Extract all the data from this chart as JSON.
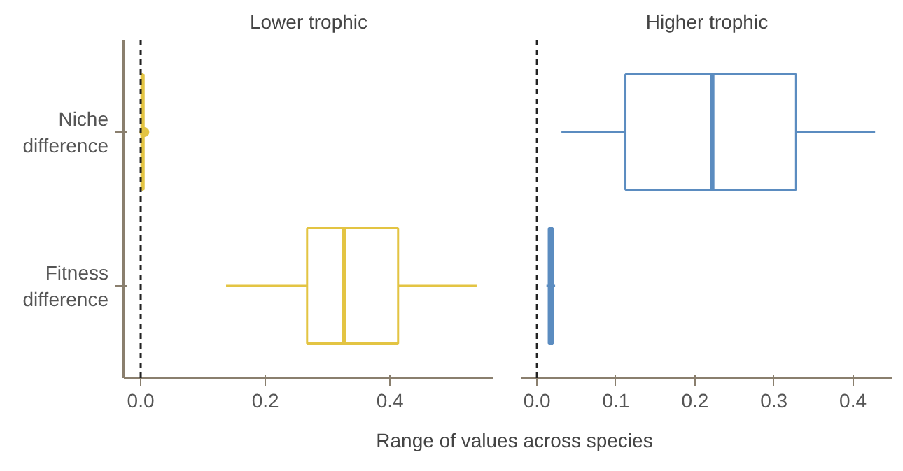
{
  "chart_data": [
    {
      "type": "box",
      "title": "Lower trophic",
      "orientation": "horizontal",
      "categories": [
        "Niche difference",
        "Fitness difference"
      ],
      "xlim": [
        -0.027,
        0.566
      ],
      "xticks": [
        {
          "value": 0,
          "label": "0.0"
        },
        0.2,
        0.4
      ],
      "xlabel": "Range of values across species",
      "series": [
        {
          "color": "#e3c443",
          "boxes": [
            {
              "low": 0.001,
              "q1": 0.002,
              "median": 0.003,
              "q3": 0.004,
              "high": 0.005,
              "outliers": [
                0.006
              ]
            },
            {
              "low": 0.137,
              "q1": 0.267,
              "median": 0.326,
              "q3": 0.413,
              "high": 0.539
            }
          ]
        }
      ],
      "ref_lines": [
        {
          "axis": "x",
          "value": 0,
          "color": "#222222",
          "line_style": "dashed"
        }
      ]
    },
    {
      "type": "box",
      "title": "Higher trophic",
      "orientation": "horizontal",
      "categories": [
        null,
        null
      ],
      "tick_labels": "x",
      "xlim": [
        -0.0196,
        0.45
      ],
      "xticks": [
        {
          "value": 0,
          "label": "0.0"
        },
        0.1,
        0.2,
        0.3,
        0.4
      ],
      "series": [
        {
          "color": "#5b8cc0",
          "boxes": [
            {
              "low": 0.031,
              "q1": 0.112,
              "median": 0.222,
              "q3": 0.328,
              "high": 0.428
            },
            {
              "low": 0.012,
              "q1": 0.015,
              "median": 0.017,
              "q3": 0.02,
              "high": 0.023
            }
          ]
        }
      ],
      "ref_lines": [
        {
          "axis": "x",
          "value": 0,
          "color": "#222222",
          "line_style": "dashed"
        }
      ]
    }
  ]
}
